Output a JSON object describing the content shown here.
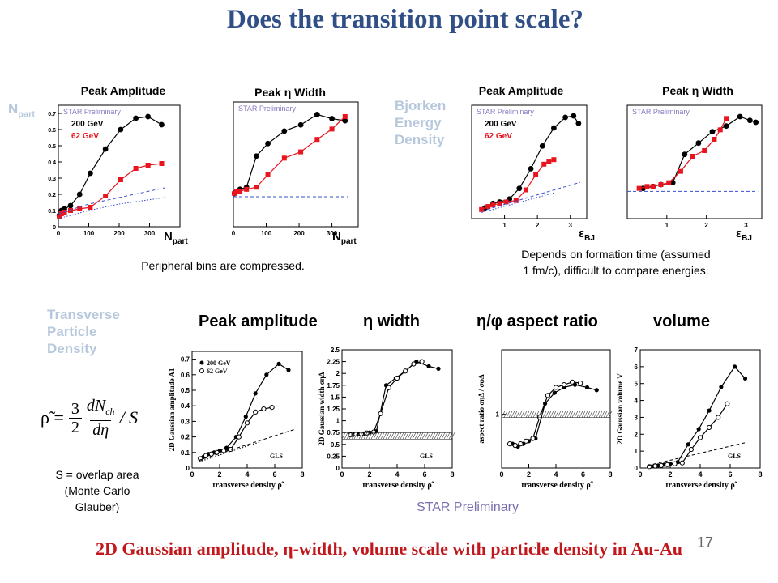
{
  "title": "Does the transition point scale?",
  "top_left": {
    "side_label": "N",
    "side_label_sub": "part",
    "panel1_title": "Peak Amplitude",
    "panel2_title": "Peak η Width",
    "axis_word": "N",
    "axis_word_sub": "part",
    "note": "Peripheral bins are compressed."
  },
  "top_right": {
    "side_label_lines": [
      "Bjorken",
      "Energy",
      "Density"
    ],
    "panel1_title": "Peak Amplitude",
    "panel2_title": "Peak η Width",
    "axis_word": "ε",
    "axis_word_sub": "BJ",
    "note_lines": [
      "Depends on formation time (assumed",
      "1 fm/c), difficult to compare energies."
    ]
  },
  "bottom": {
    "side_label_lines": [
      "Transverse",
      "Particle",
      "Density"
    ],
    "col_heads": [
      "Peak amplitude",
      "η width",
      "η/φ aspect ratio",
      "volume"
    ],
    "formula_lhs": "ρ̃ =",
    "formula_frac_num": "3",
    "formula_frac_den": "2",
    "formula_dn_num": "dN",
    "formula_dn_sub": "ch",
    "formula_dn_den": "dη",
    "formula_tail": "/ S",
    "overlap_lines": [
      "S = overlap area",
      "(Monte Carlo",
      "Glauber)"
    ],
    "star": "STAR Preliminary"
  },
  "footer": "2D Gaussian amplitude, η-width, volume scale with particle density in Au-Au",
  "page_number": "17",
  "colors": {
    "title": "#2f4f86",
    "red": "#e8141e",
    "black": "#000000",
    "gray_label": "#b8c8dc",
    "footer": "#c0181c",
    "dashed_blue": "#3a4fd0"
  },
  "chart_data": [
    {
      "type": "line",
      "title": "Peak Amplitude",
      "xlabel": "N part",
      "watermark": "STAR Preliminary",
      "xlim": [
        0,
        400
      ],
      "ylim": [
        0,
        0.75
      ],
      "xticks": [
        "0",
        "100",
        "200",
        "300"
      ],
      "yticks": [
        "0",
        "0.1",
        "0.2",
        "0.3",
        "0.4",
        "0.5",
        "0.6",
        "0.7"
      ],
      "legend": [
        "200 GeV",
        "62 GeV"
      ],
      "series": [
        {
          "name": "200 GeV",
          "color": "#000000",
          "x": [
            3,
            10,
            20,
            40,
            70,
            105,
            155,
            205,
            255,
            295,
            340
          ],
          "y": [
            0.07,
            0.1,
            0.11,
            0.13,
            0.2,
            0.33,
            0.48,
            0.6,
            0.67,
            0.68,
            0.63
          ]
        },
        {
          "name": "62 GeV",
          "color": "#e8141e",
          "x": [
            3,
            10,
            20,
            40,
            70,
            105,
            155,
            205,
            255,
            295,
            340
          ],
          "y": [
            0.06,
            0.08,
            0.09,
            0.1,
            0.11,
            0.12,
            0.19,
            0.29,
            0.36,
            0.38,
            0.39
          ]
        },
        {
          "name": "",
          "color": "#3a4fd0",
          "style": "dashed",
          "x": [
            0,
            100,
            200,
            350
          ],
          "y": [
            0.08,
            0.14,
            0.18,
            0.24
          ]
        },
        {
          "name": "",
          "color": "#3a4fd0",
          "style": "dotted",
          "x": [
            0,
            100,
            200,
            350
          ],
          "y": [
            0.05,
            0.1,
            0.14,
            0.18
          ]
        }
      ]
    },
    {
      "type": "line",
      "title": "Peak η Width",
      "xlabel": "N part",
      "watermark": "STAR Preliminary",
      "xlim": [
        0,
        380
      ],
      "ylim": [
        0,
        3.0
      ],
      "xticks": [
        "0",
        "100",
        "200",
        "300"
      ],
      "series": [
        {
          "name": "200 GeV",
          "color": "#000000",
          "x": [
            3,
            10,
            20,
            40,
            70,
            105,
            155,
            205,
            255,
            300,
            340
          ],
          "y": [
            0.8,
            0.85,
            0.9,
            0.95,
            1.7,
            2.0,
            2.3,
            2.45,
            2.7,
            2.6,
            2.55
          ]
        },
        {
          "name": "62 GeV",
          "color": "#e8141e",
          "x": [
            3,
            10,
            20,
            40,
            70,
            105,
            155,
            205,
            255,
            300,
            340
          ],
          "y": [
            0.8,
            0.85,
            0.85,
            0.9,
            0.95,
            1.25,
            1.65,
            1.8,
            2.1,
            2.35,
            2.65
          ]
        },
        {
          "name": "",
          "color": "#3a4fd0",
          "style": "dashed",
          "x": [
            0,
            350
          ],
          "y": [
            0.72,
            0.72
          ]
        }
      ]
    },
    {
      "type": "line",
      "title": "Peak Amplitude",
      "xlabel": "ε BJ",
      "watermark": "STAR Preliminary",
      "xlim": [
        0,
        3.5
      ],
      "ylim": [
        0,
        0.75
      ],
      "xticks": [
        "1",
        "2",
        "3"
      ],
      "legend": [
        "200 GeV",
        "62 GeV"
      ],
      "series": [
        {
          "name": "200 GeV",
          "color": "#000000",
          "x": [
            0.4,
            0.65,
            0.85,
            1.15,
            1.45,
            1.8,
            2.15,
            2.5,
            2.85,
            3.1,
            3.25
          ],
          "y": [
            0.07,
            0.1,
            0.11,
            0.13,
            0.2,
            0.33,
            0.48,
            0.6,
            0.67,
            0.68,
            0.63
          ]
        },
        {
          "name": "62 GeV",
          "color": "#e8141e",
          "x": [
            0.3,
            0.5,
            0.65,
            0.85,
            1.05,
            1.35,
            1.65,
            1.95,
            2.2,
            2.35,
            2.5
          ],
          "y": [
            0.06,
            0.08,
            0.09,
            0.1,
            0.11,
            0.12,
            0.19,
            0.29,
            0.36,
            0.38,
            0.39
          ]
        },
        {
          "name": "",
          "color": "#3a4fd0",
          "style": "dashed",
          "x": [
            0.3,
            3.3
          ],
          "y": [
            0.05,
            0.24
          ]
        },
        {
          "name": "",
          "color": "#3a4fd0",
          "style": "dotted",
          "x": [
            0.3,
            2.5
          ],
          "y": [
            0.04,
            0.17
          ]
        }
      ]
    },
    {
      "type": "line",
      "title": "Peak η Width",
      "xlabel": "ε BJ",
      "watermark": "STAR Preliminary",
      "xlim": [
        0,
        3.4
      ],
      "ylim": [
        0,
        3.0
      ],
      "xticks": [
        "1",
        "2",
        "3"
      ],
      "series": [
        {
          "name": "200 GeV",
          "color": "#000000",
          "x": [
            0.4,
            0.65,
            0.85,
            1.15,
            1.45,
            1.8,
            2.15,
            2.5,
            2.85,
            3.1,
            3.25
          ],
          "y": [
            0.8,
            0.85,
            0.9,
            0.95,
            1.7,
            2.0,
            2.3,
            2.45,
            2.7,
            2.6,
            2.55
          ]
        },
        {
          "name": "62 GeV",
          "color": "#e8141e",
          "x": [
            0.3,
            0.5,
            0.65,
            0.85,
            1.05,
            1.35,
            1.65,
            1.95,
            2.2,
            2.35,
            2.5
          ],
          "y": [
            0.8,
            0.85,
            0.85,
            0.9,
            0.95,
            1.25,
            1.65,
            1.8,
            2.1,
            2.35,
            2.65
          ]
        },
        {
          "name": "",
          "color": "#3a4fd0",
          "style": "dashed",
          "x": [
            0,
            3.3
          ],
          "y": [
            0.72,
            0.72
          ]
        }
      ]
    },
    {
      "type": "line",
      "title": "Peak amplitude",
      "xlabel": "transverse density ρ̃",
      "ylabel": "2D Gaussian amplitude A1",
      "xlim": [
        0,
        8
      ],
      "ylim": [
        0,
        0.75
      ],
      "xticks": [
        "0",
        "2",
        "4",
        "6",
        "8"
      ],
      "yticks": [
        "0",
        "0.1",
        "0.2",
        "0.3",
        "0.4",
        "0.5",
        "0.6",
        "0.7"
      ],
      "legend": [
        "200 GeV",
        "62 GeV"
      ],
      "annotation": "GLS",
      "series": [
        {
          "name": "200 GeV",
          "marker": "filled",
          "x": [
            0.8,
            1.2,
            1.6,
            2.0,
            2.5,
            3.2,
            3.9,
            4.6,
            5.4,
            6.3,
            7.0
          ],
          "y": [
            0.07,
            0.09,
            0.1,
            0.11,
            0.13,
            0.2,
            0.33,
            0.48,
            0.6,
            0.67,
            0.63
          ]
        },
        {
          "name": "62 GeV",
          "marker": "open",
          "x": [
            0.6,
            1.0,
            1.4,
            1.8,
            2.3,
            2.8,
            3.4,
            4.0,
            4.6,
            5.2,
            5.8
          ],
          "y": [
            0.06,
            0.08,
            0.09,
            0.1,
            0.11,
            0.12,
            0.2,
            0.29,
            0.36,
            0.38,
            0.39
          ]
        },
        {
          "name": "",
          "style": "dashed",
          "x": [
            0.5,
            7.5
          ],
          "y": [
            0.05,
            0.25
          ]
        },
        {
          "name": "",
          "style": "dotted",
          "x": [
            0.5,
            5.0
          ],
          "y": [
            0.04,
            0.17
          ]
        }
      ]
    },
    {
      "type": "line",
      "title": "η width",
      "xlabel": "transverse density ρ̃",
      "ylabel": "2D Gaussian width σηΔ",
      "xlim": [
        0,
        8
      ],
      "ylim": [
        0,
        2.5
      ],
      "xticks": [
        "0",
        "2",
        "4",
        "6",
        "8"
      ],
      "yticks": [
        "0",
        "0.25",
        "0.5",
        "0.75",
        "1",
        "1.25",
        "1.5",
        "1.75",
        "2",
        "2.25",
        "2.5"
      ],
      "annotation": "GLS",
      "series": [
        {
          "name": "200 GeV",
          "marker": "filled",
          "x": [
            0.8,
            1.2,
            1.6,
            2.0,
            2.5,
            3.2,
            3.9,
            4.6,
            5.4,
            6.3,
            7.0
          ],
          "y": [
            0.7,
            0.72,
            0.73,
            0.75,
            0.78,
            1.75,
            1.9,
            2.05,
            2.25,
            2.15,
            2.1
          ]
        },
        {
          "name": "62 GeV",
          "marker": "open",
          "x": [
            0.6,
            1.0,
            1.4,
            1.8,
            2.3,
            2.8,
            3.4,
            4.0,
            4.6,
            5.2,
            5.8
          ],
          "y": [
            0.7,
            0.72,
            0.72,
            0.74,
            0.76,
            1.15,
            1.7,
            1.9,
            2.05,
            2.2,
            2.25
          ]
        },
        {
          "name": "",
          "style": "hatched-band",
          "x": [
            0,
            8
          ],
          "y": [
            0.68,
            0.68
          ]
        }
      ]
    },
    {
      "type": "line",
      "title": "η/φ aspect ratio",
      "xlabel": "transverse density ρ̃",
      "ylabel": "aspect ratio σηΔ / σφΔ",
      "xlim": [
        0,
        8
      ],
      "ylim": [
        0,
        2.2
      ],
      "xticks": [
        "0",
        "2",
        "4",
        "6",
        "8"
      ],
      "yticks": [
        "1"
      ],
      "series": [
        {
          "name": "200 GeV",
          "marker": "filled",
          "x": [
            0.8,
            1.2,
            1.6,
            2.0,
            2.5,
            3.2,
            3.9,
            4.6,
            5.4,
            6.3,
            7.0
          ],
          "y": [
            0.45,
            0.4,
            0.45,
            0.5,
            0.55,
            1.2,
            1.4,
            1.5,
            1.55,
            1.5,
            1.45
          ]
        },
        {
          "name": "62 GeV",
          "marker": "open",
          "x": [
            0.6,
            1.0,
            1.4,
            1.8,
            2.3,
            2.8,
            3.4,
            4.0,
            4.6,
            5.2,
            5.8
          ],
          "y": [
            0.45,
            0.42,
            0.45,
            0.5,
            0.55,
            0.95,
            1.35,
            1.5,
            1.55,
            1.6,
            1.58
          ]
        },
        {
          "name": "",
          "style": "hatched-band",
          "x": [
            0,
            8
          ],
          "y": [
            1.0,
            1.0
          ]
        }
      ]
    },
    {
      "type": "line",
      "title": "volume",
      "xlabel": "transverse density ρ̃",
      "ylabel": "2D Gaussian volume V",
      "xlim": [
        0,
        8
      ],
      "ylim": [
        0,
        7
      ],
      "xticks": [
        "0",
        "2",
        "4",
        "6",
        "8"
      ],
      "yticks": [
        "0",
        "1",
        "2",
        "3",
        "4",
        "5",
        "6",
        "7"
      ],
      "annotation": "GLS",
      "series": [
        {
          "name": "200 GeV",
          "marker": "filled",
          "x": [
            0.8,
            1.2,
            1.6,
            2.0,
            2.5,
            3.2,
            3.9,
            4.6,
            5.4,
            6.3,
            7.0
          ],
          "y": [
            0.1,
            0.15,
            0.2,
            0.25,
            0.35,
            1.4,
            2.3,
            3.4,
            4.8,
            6.0,
            5.3
          ]
        },
        {
          "name": "62 GeV",
          "marker": "open",
          "x": [
            0.6,
            1.0,
            1.4,
            1.8,
            2.3,
            2.8,
            3.4,
            4.0,
            4.6,
            5.2,
            5.8
          ],
          "y": [
            0.08,
            0.12,
            0.15,
            0.2,
            0.25,
            0.3,
            1.1,
            1.8,
            2.4,
            3.0,
            3.8
          ]
        },
        {
          "name": "",
          "style": "dashed",
          "x": [
            0.5,
            7.0
          ],
          "y": [
            0.15,
            1.5
          ]
        }
      ]
    }
  ]
}
